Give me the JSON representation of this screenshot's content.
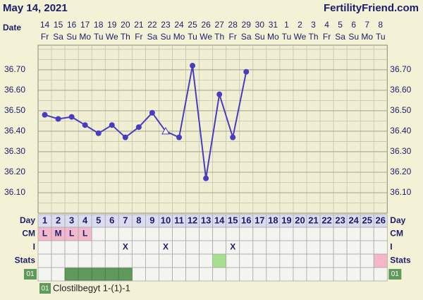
{
  "chart_data": {
    "type": "line",
    "title": "May 14, 2021",
    "site": "FertilityFriend.com",
    "date_label": "Date",
    "dates": [
      14,
      15,
      16,
      17,
      18,
      19,
      20,
      21,
      22,
      23,
      24,
      25,
      26,
      27,
      28,
      29,
      30,
      31,
      1,
      2,
      3,
      4,
      5,
      6,
      7,
      8
    ],
    "weekdays": [
      "Fr",
      "Sa",
      "Su",
      "Mo",
      "Tu",
      "We",
      "Th",
      "Fr",
      "Sa",
      "Su",
      "Mo",
      "Tu",
      "We",
      "Th",
      "Fr",
      "Sa",
      "Su",
      "Mo",
      "Tu",
      "We",
      "Th",
      "Fr",
      "Sa",
      "Su",
      "Mo",
      "Tu"
    ],
    "series": [
      {
        "name": "Temperature",
        "color": "#4a3cc0",
        "values": [
          36.48,
          36.46,
          36.47,
          36.43,
          36.39,
          36.43,
          36.37,
          36.42,
          36.49,
          36.4,
          36.37,
          36.72,
          36.17,
          36.58,
          36.37,
          36.69,
          null,
          null,
          null,
          null,
          null,
          null,
          null,
          null,
          null,
          null
        ],
        "markers": [
          "circle",
          "circle",
          "circle",
          "circle",
          "circle",
          "circle",
          "circle",
          "circle",
          "circle",
          "triangle",
          "circle",
          "circle",
          "circle",
          "circle",
          "circle",
          "circle",
          null,
          null,
          null,
          null,
          null,
          null,
          null,
          null,
          null,
          null
        ]
      }
    ],
    "ylim": [
      36.0,
      36.82
    ],
    "yticks": [
      {
        "value": 36.1,
        "label": "36.10"
      },
      {
        "value": 36.2,
        "label": "36.20"
      },
      {
        "value": 36.3,
        "label": "36.30"
      },
      {
        "value": 36.4,
        "label": "36.40"
      },
      {
        "value": 36.5,
        "label": "36.50"
      },
      {
        "value": 36.6,
        "label": "36.60"
      },
      {
        "value": 36.7,
        "label": "36.70"
      }
    ],
    "grid": true,
    "day_label": "Day",
    "days": [
      1,
      2,
      3,
      4,
      5,
      6,
      7,
      8,
      9,
      10,
      11,
      12,
      13,
      14,
      15,
      16,
      17,
      18,
      19,
      20,
      21,
      22,
      23,
      24,
      25,
      26
    ],
    "cm_label": "CM",
    "cm": [
      "L",
      "M",
      "L",
      "L",
      null,
      null,
      null,
      null,
      null,
      null,
      null,
      null,
      null,
      null,
      null,
      null,
      null,
      null,
      null,
      null,
      null,
      null,
      null,
      null,
      null,
      null
    ],
    "cm_color": "#f2b8cc",
    "i_label": "I",
    "i": [
      null,
      null,
      null,
      null,
      null,
      null,
      "X",
      null,
      null,
      "X",
      null,
      null,
      null,
      null,
      "X",
      null,
      null,
      null,
      null,
      null,
      null,
      null,
      null,
      null,
      null,
      null
    ],
    "stats_label": "Stats",
    "stats": [
      null,
      null,
      null,
      null,
      null,
      null,
      null,
      null,
      null,
      null,
      null,
      null,
      null,
      "#a6e08c",
      null,
      null,
      null,
      null,
      null,
      null,
      null,
      null,
      null,
      null,
      null,
      "#f4b6c8"
    ],
    "medication": {
      "code": "01",
      "name": "Clostilbegyt 1-(1)-1",
      "color": "#5f9a5c",
      "days": [
        3,
        4,
        5,
        6,
        7
      ]
    }
  }
}
